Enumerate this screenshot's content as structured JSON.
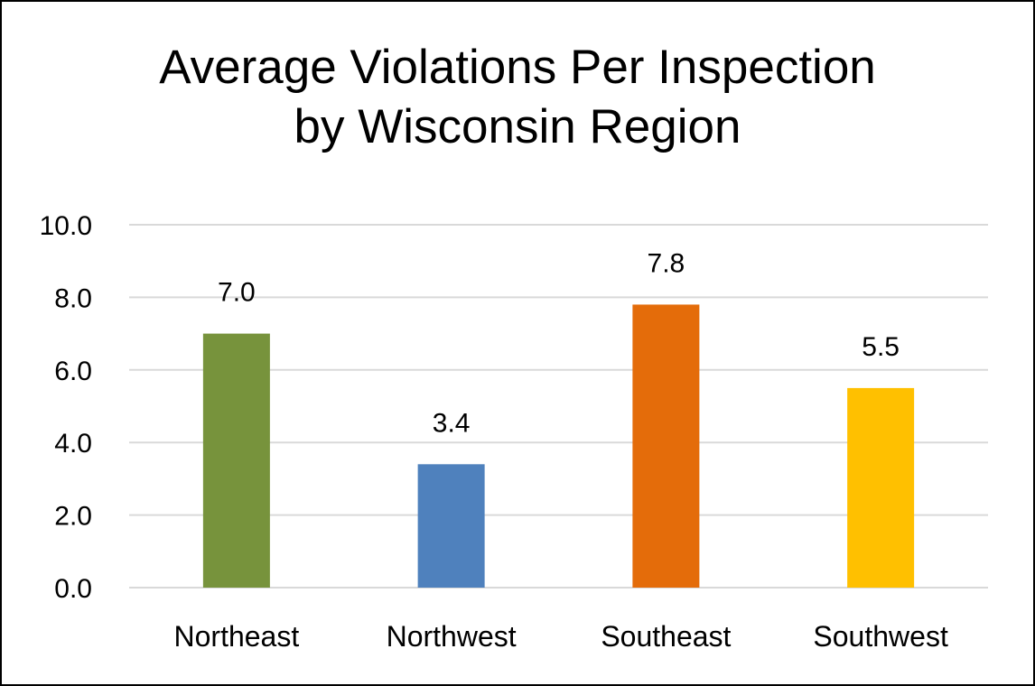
{
  "chart_data": {
    "type": "bar",
    "title_lines": [
      "Average Violations Per Inspection",
      "by Wisconsin Region"
    ],
    "categories": [
      "Northeast",
      "Northwest",
      "Southeast",
      "Southwest"
    ],
    "values": [
      7.0,
      3.4,
      7.8,
      5.5
    ],
    "data_labels": [
      "7.0",
      "3.4",
      "7.8",
      "5.5"
    ],
    "bar_colors": [
      "#77933C",
      "#4F81BD",
      "#E46C0A",
      "#FFC000"
    ],
    "y_ticks": [
      0,
      2,
      4,
      6,
      8,
      10
    ],
    "y_tick_labels": [
      "0.0",
      "2.0",
      "4.0",
      "6.0",
      "8.0",
      "10.0"
    ],
    "ylim": [
      0,
      10
    ],
    "xlabel": "",
    "ylabel": "",
    "grid": true,
    "gridline_color": "#D9D9D9",
    "legend": "none"
  }
}
